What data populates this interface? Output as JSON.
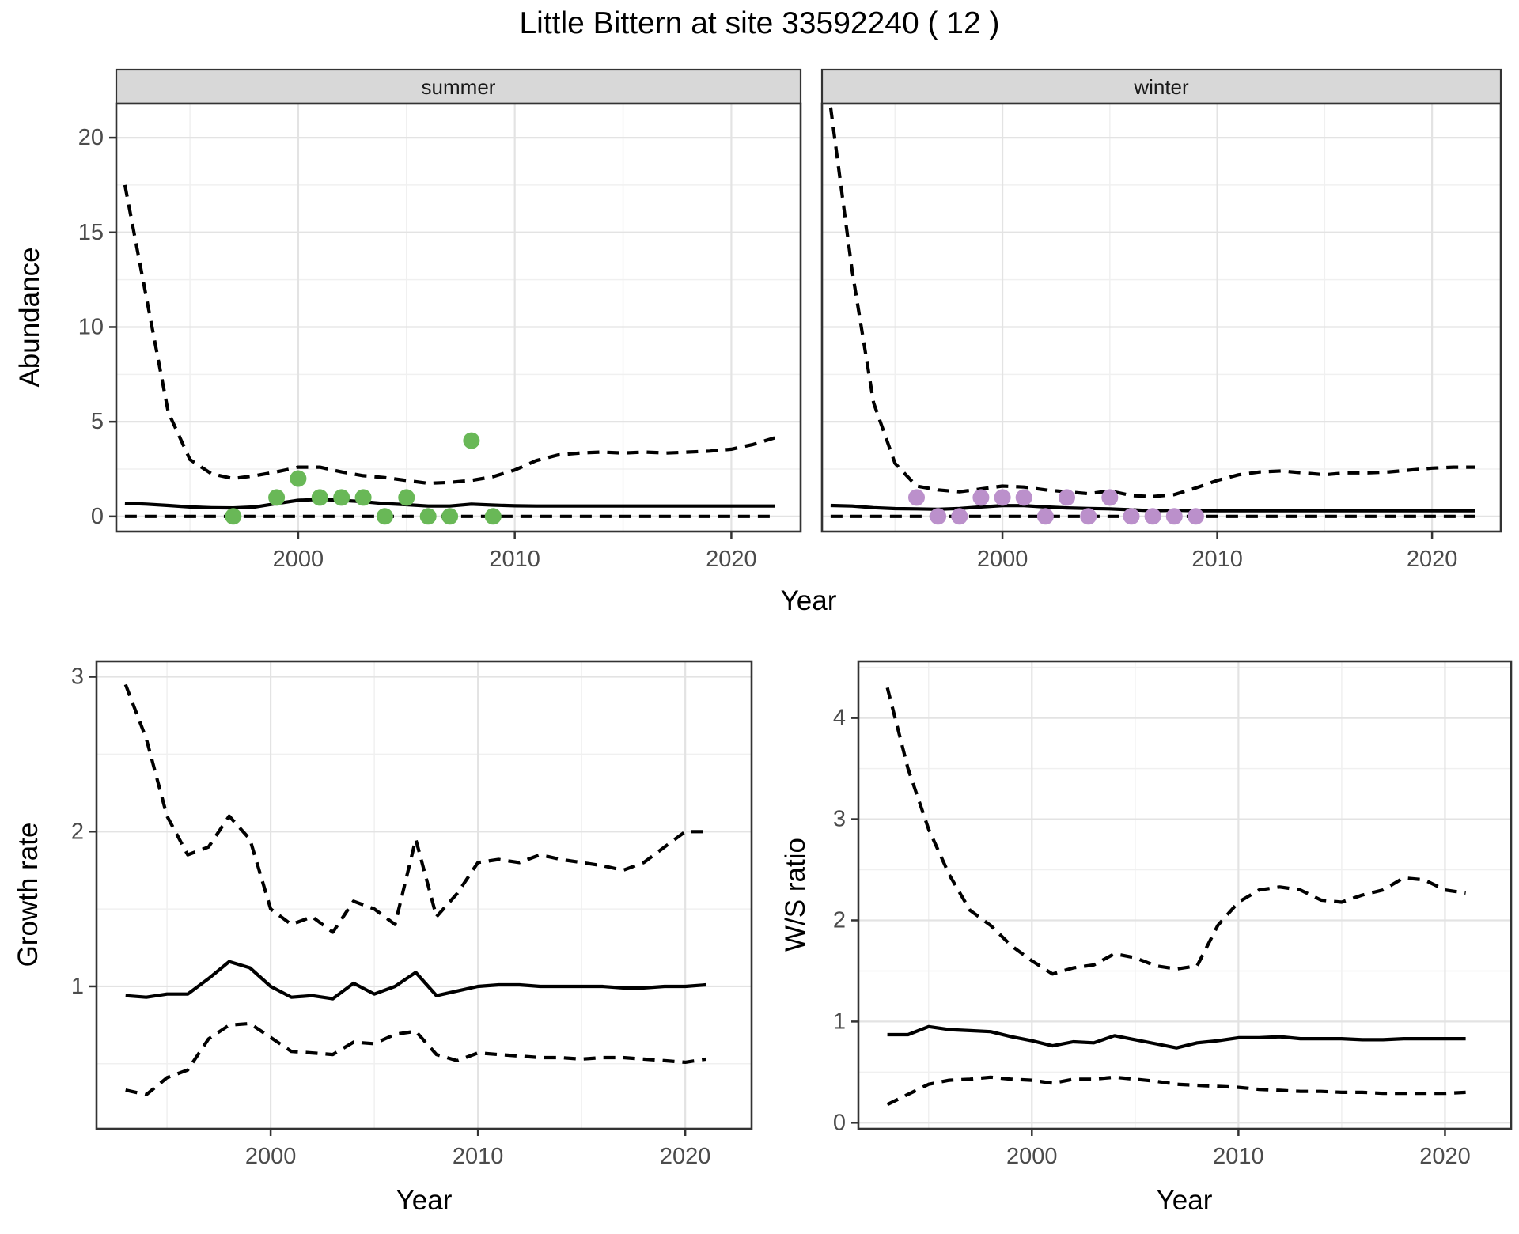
{
  "title": "Little Bittern at site 33592240 ( 12 )",
  "facets": {
    "summer": "summer",
    "winter": "winter"
  },
  "axis_labels": {
    "abundance": "Abundance",
    "year": "Year",
    "growth_rate": "Growth rate",
    "ws_ratio": "W/S ratio"
  },
  "colors": {
    "summer_points": "#69b857",
    "winter_points": "#bb90cb",
    "line": "#000000",
    "strip_bg": "#d8d8d8",
    "strip_text": "#1a1a1a",
    "panel_bg": "#ffffff",
    "panel_border": "#333333",
    "grid_major": "#e3e3e3",
    "grid_minor": "#f0f0f0",
    "tick_mark": "#333333",
    "tick_text": "#4b4b4b"
  },
  "chart_data": [
    {
      "id": "abundance_summer",
      "type": "line",
      "facet_label": "summer",
      "xlabel": "Year",
      "ylabel": "Abundance",
      "xlim": [
        1991.6,
        2023.2
      ],
      "ylim": [
        -0.8,
        21.8
      ],
      "xticks": [
        2000,
        2010,
        2020
      ],
      "xminor": [
        1995,
        2005,
        2015
      ],
      "yticks": [
        0,
        5,
        10,
        15,
        20
      ],
      "yminor": [
        2.5,
        7.5,
        12.5,
        17.5
      ],
      "years": [
        1992,
        1993,
        1994,
        1995,
        1996,
        1997,
        1998,
        1999,
        2000,
        2001,
        2002,
        2003,
        2004,
        2005,
        2006,
        2007,
        2008,
        2009,
        2010,
        2011,
        2012,
        2013,
        2014,
        2015,
        2016,
        2017,
        2018,
        2019,
        2020,
        2021,
        2022
      ],
      "series": [
        {
          "name": "median",
          "style": "solid",
          "values": [
            0.7,
            0.65,
            0.58,
            0.5,
            0.46,
            0.45,
            0.5,
            0.68,
            0.85,
            0.9,
            0.85,
            0.78,
            0.68,
            0.62,
            0.55,
            0.55,
            0.65,
            0.6,
            0.56,
            0.55,
            0.55,
            0.55,
            0.55,
            0.55,
            0.55,
            0.55,
            0.55,
            0.55,
            0.55,
            0.55,
            0.55
          ]
        },
        {
          "name": "lower_ci",
          "style": "dashed",
          "values": [
            0,
            0,
            0,
            0,
            0,
            0,
            0,
            0,
            0,
            0,
            0,
            0,
            0,
            0,
            0,
            0,
            0,
            0,
            0,
            0,
            0,
            0,
            0,
            0,
            0,
            0,
            0,
            0,
            0,
            0,
            0
          ]
        },
        {
          "name": "upper_ci",
          "style": "dashed",
          "values": [
            17.5,
            11.5,
            5.5,
            3.0,
            2.25,
            2.0,
            2.15,
            2.35,
            2.6,
            2.6,
            2.35,
            2.15,
            2.05,
            1.9,
            1.75,
            1.8,
            1.9,
            2.1,
            2.45,
            2.95,
            3.25,
            3.35,
            3.4,
            3.35,
            3.4,
            3.35,
            3.4,
            3.45,
            3.55,
            3.8,
            4.15
          ]
        }
      ],
      "points": {
        "name": "observed_counts",
        "color_key": "summer_points",
        "years": [
          1997,
          1999,
          2000,
          2001,
          2002,
          2003,
          2004,
          2005,
          2006,
          2007,
          2008,
          2009
        ],
        "values": [
          0,
          1,
          2,
          1,
          1,
          1,
          0,
          1,
          0,
          0,
          4,
          0
        ]
      }
    },
    {
      "id": "abundance_winter",
      "type": "line",
      "facet_label": "winter",
      "xlabel": "Year",
      "ylabel": "Abundance",
      "xlim": [
        1991.6,
        2023.2
      ],
      "ylim": [
        -0.8,
        21.8
      ],
      "xticks": [
        2000,
        2010,
        2020
      ],
      "xminor": [
        1995,
        2005,
        2015
      ],
      "yticks": [
        0,
        5,
        10,
        15,
        20
      ],
      "yminor": [
        2.5,
        7.5,
        12.5,
        17.5
      ],
      "years": [
        1992,
        1993,
        1994,
        1995,
        1996,
        1997,
        1998,
        1999,
        2000,
        2001,
        2002,
        2003,
        2004,
        2005,
        2006,
        2007,
        2008,
        2009,
        2010,
        2011,
        2012,
        2013,
        2014,
        2015,
        2016,
        2017,
        2018,
        2019,
        2020,
        2021,
        2022
      ],
      "series": [
        {
          "name": "median",
          "style": "solid",
          "values": [
            0.58,
            0.55,
            0.46,
            0.41,
            0.4,
            0.38,
            0.42,
            0.5,
            0.57,
            0.57,
            0.5,
            0.45,
            0.42,
            0.4,
            0.35,
            0.3,
            0.33,
            0.3,
            0.3,
            0.3,
            0.3,
            0.3,
            0.3,
            0.3,
            0.3,
            0.3,
            0.3,
            0.3,
            0.3,
            0.3,
            0.3
          ]
        },
        {
          "name": "lower_ci",
          "style": "dashed",
          "values": [
            0,
            0,
            0,
            0,
            0,
            0,
            0,
            0,
            0,
            0,
            0,
            0,
            0,
            0,
            0,
            0,
            0,
            0,
            0,
            0,
            0,
            0,
            0,
            0,
            0,
            0,
            0,
            0,
            0,
            0,
            0
          ]
        },
        {
          "name": "upper_ci",
          "style": "dashed",
          "values": [
            21.6,
            13.0,
            6.0,
            2.8,
            1.6,
            1.4,
            1.3,
            1.45,
            1.6,
            1.55,
            1.4,
            1.3,
            1.2,
            1.35,
            1.1,
            1.05,
            1.15,
            1.5,
            1.9,
            2.2,
            2.35,
            2.4,
            2.3,
            2.2,
            2.3,
            2.3,
            2.35,
            2.45,
            2.55,
            2.6,
            2.6
          ]
        }
      ],
      "points": {
        "name": "observed_counts",
        "color_key": "winter_points",
        "years": [
          1996,
          1997,
          1998,
          1999,
          2000,
          2001,
          2002,
          2003,
          2004,
          2005,
          2006,
          2007,
          2008,
          2009
        ],
        "values": [
          1,
          0,
          0,
          1,
          1,
          1,
          0,
          1,
          0,
          1,
          0,
          0,
          0,
          0
        ]
      }
    },
    {
      "id": "growth_rate",
      "type": "line",
      "xlabel": "Year",
      "ylabel": "Growth rate",
      "xlim": [
        1991.6,
        2023.2
      ],
      "ylim": [
        0.08,
        3.1
      ],
      "xticks": [
        2000,
        2010,
        2020
      ],
      "xminor": [
        1995,
        2005,
        2015
      ],
      "yticks": [
        1,
        2,
        3
      ],
      "yminor": [
        0.5,
        1.5,
        2.5
      ],
      "years": [
        1993,
        1994,
        1995,
        1996,
        1997,
        1998,
        1999,
        2000,
        2001,
        2002,
        2003,
        2004,
        2005,
        2006,
        2007,
        2008,
        2009,
        2010,
        2011,
        2012,
        2013,
        2014,
        2015,
        2016,
        2017,
        2018,
        2019,
        2020,
        2021
      ],
      "series": [
        {
          "name": "median",
          "style": "solid",
          "values": [
            0.94,
            0.93,
            0.95,
            0.95,
            1.05,
            1.16,
            1.12,
            1.0,
            0.93,
            0.94,
            0.92,
            1.02,
            0.95,
            1.0,
            1.09,
            0.94,
            0.97,
            1.0,
            1.01,
            1.01,
            1.0,
            1.0,
            1.0,
            1.0,
            0.99,
            0.99,
            1.0,
            1.0,
            1.01
          ]
        },
        {
          "name": "lower_ci",
          "style": "dashed",
          "values": [
            0.33,
            0.3,
            0.41,
            0.46,
            0.66,
            0.75,
            0.76,
            0.67,
            0.58,
            0.57,
            0.56,
            0.64,
            0.63,
            0.69,
            0.71,
            0.56,
            0.52,
            0.57,
            0.56,
            0.55,
            0.54,
            0.54,
            0.53,
            0.54,
            0.54,
            0.53,
            0.52,
            0.51,
            0.53
          ]
        },
        {
          "name": "upper_ci",
          "style": "dashed",
          "values": [
            2.95,
            2.6,
            2.1,
            1.85,
            1.9,
            2.1,
            1.95,
            1.5,
            1.4,
            1.45,
            1.35,
            1.55,
            1.5,
            1.4,
            1.95,
            1.45,
            1.6,
            1.8,
            1.82,
            1.8,
            1.85,
            1.82,
            1.8,
            1.78,
            1.75,
            1.8,
            1.9,
            2.0,
            2.0
          ]
        }
      ]
    },
    {
      "id": "ws_ratio",
      "type": "line",
      "xlabel": "Year",
      "ylabel": "W/S ratio",
      "xlim": [
        1991.6,
        2023.2
      ],
      "ylim": [
        -0.06,
        4.56
      ],
      "xticks": [
        2000,
        2010,
        2020
      ],
      "xminor": [
        1995,
        2005,
        2015
      ],
      "yticks": [
        0,
        1,
        2,
        3,
        4
      ],
      "yminor": [
        0.5,
        1.5,
        2.5,
        3.5,
        4.5
      ],
      "years": [
        1993,
        1994,
        1995,
        1996,
        1997,
        1998,
        1999,
        2000,
        2001,
        2002,
        2003,
        2004,
        2005,
        2006,
        2007,
        2008,
        2009,
        2010,
        2011,
        2012,
        2013,
        2014,
        2015,
        2016,
        2017,
        2018,
        2019,
        2020,
        2021
      ],
      "series": [
        {
          "name": "median",
          "style": "solid",
          "values": [
            0.87,
            0.87,
            0.95,
            0.92,
            0.91,
            0.9,
            0.85,
            0.81,
            0.76,
            0.8,
            0.79,
            0.86,
            0.82,
            0.78,
            0.74,
            0.79,
            0.81,
            0.84,
            0.84,
            0.85,
            0.83,
            0.83,
            0.83,
            0.82,
            0.82,
            0.83,
            0.83,
            0.83,
            0.83
          ]
        },
        {
          "name": "lower_ci",
          "style": "dashed",
          "values": [
            0.18,
            0.28,
            0.38,
            0.42,
            0.43,
            0.45,
            0.43,
            0.42,
            0.39,
            0.43,
            0.43,
            0.45,
            0.43,
            0.41,
            0.38,
            0.37,
            0.36,
            0.35,
            0.33,
            0.32,
            0.31,
            0.31,
            0.3,
            0.3,
            0.29,
            0.29,
            0.29,
            0.29,
            0.3
          ]
        },
        {
          "name": "upper_ci",
          "style": "dashed",
          "values": [
            4.3,
            3.5,
            2.9,
            2.45,
            2.1,
            1.95,
            1.75,
            1.6,
            1.47,
            1.53,
            1.56,
            1.67,
            1.63,
            1.55,
            1.52,
            1.55,
            1.95,
            2.18,
            2.3,
            2.33,
            2.3,
            2.2,
            2.18,
            2.25,
            2.3,
            2.42,
            2.4,
            2.3,
            2.27
          ]
        }
      ]
    }
  ]
}
